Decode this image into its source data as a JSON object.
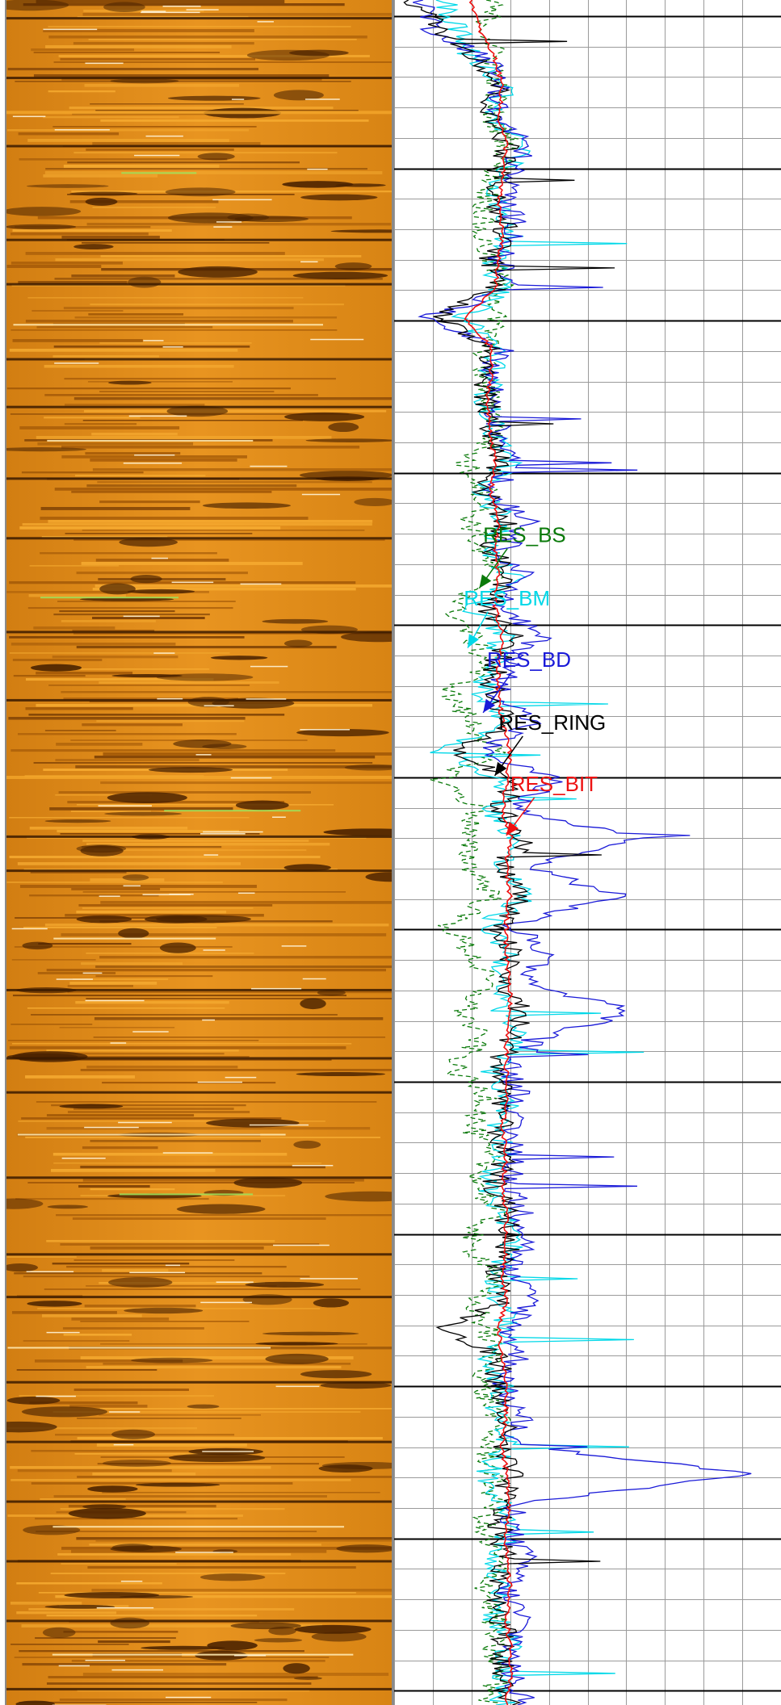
{
  "chart_data": [
    {
      "type": "heatmap",
      "title": "",
      "palette": {
        "dark": "#3a1a00",
        "mid": "#c4720e",
        "light": "#f4a62a",
        "highlight": "#ffe9b0",
        "streak": "#9ee05a"
      },
      "bands": [
        {
          "y": 0.01,
          "tone": "dark"
        },
        {
          "y": 0.045,
          "tone": "dark"
        },
        {
          "y": 0.065,
          "tone": "light"
        },
        {
          "y": 0.085,
          "tone": "dark"
        },
        {
          "y": 0.101,
          "tone": "streak"
        },
        {
          "y": 0.14,
          "tone": "dark"
        },
        {
          "y": 0.166,
          "tone": "dark"
        },
        {
          "y": 0.19,
          "tone": "highlight"
        },
        {
          "y": 0.21,
          "tone": "dark"
        },
        {
          "y": 0.238,
          "tone": "dark"
        },
        {
          "y": 0.258,
          "tone": "highlight"
        },
        {
          "y": 0.28,
          "tone": "dark"
        },
        {
          "y": 0.315,
          "tone": "dark"
        },
        {
          "y": 0.35,
          "tone": "streak"
        },
        {
          "y": 0.37,
          "tone": "dark"
        },
        {
          "y": 0.41,
          "tone": "dark"
        },
        {
          "y": 0.455,
          "tone": "light"
        },
        {
          "y": 0.475,
          "tone": "streak"
        },
        {
          "y": 0.49,
          "tone": "dark"
        },
        {
          "y": 0.51,
          "tone": "dark"
        },
        {
          "y": 0.55,
          "tone": "highlight"
        },
        {
          "y": 0.58,
          "tone": "dark"
        },
        {
          "y": 0.62,
          "tone": "dark"
        },
        {
          "y": 0.64,
          "tone": "dark"
        },
        {
          "y": 0.665,
          "tone": "highlight"
        },
        {
          "y": 0.69,
          "tone": "dark"
        },
        {
          "y": 0.7,
          "tone": "streak"
        },
        {
          "y": 0.735,
          "tone": "dark"
        },
        {
          "y": 0.76,
          "tone": "dark"
        },
        {
          "y": 0.79,
          "tone": "highlight"
        },
        {
          "y": 0.81,
          "tone": "dark"
        },
        {
          "y": 0.845,
          "tone": "dark"
        },
        {
          "y": 0.88,
          "tone": "dark"
        },
        {
          "y": 0.895,
          "tone": "highlight"
        },
        {
          "y": 0.915,
          "tone": "dark"
        },
        {
          "y": 0.95,
          "tone": "dark"
        },
        {
          "y": 0.97,
          "tone": "highlight"
        },
        {
          "y": 0.99,
          "tone": "dark"
        }
      ]
    },
    {
      "type": "line",
      "title": "",
      "xlabel": "",
      "ylabel": "",
      "xlim": [
        0,
        1
      ],
      "ylim": [
        0,
        1
      ],
      "grid": true,
      "grid_columns": 10,
      "grid_rows": 56,
      "major_every_rows": 5,
      "series": [
        {
          "name": "RES_BS",
          "color": "#0a7a0a",
          "style": "dashed",
          "samples": [
            0.25,
            0.24,
            0.26,
            0.27,
            0.25,
            0.3,
            0.26,
            0.24,
            0.22,
            0.25,
            0.28,
            0.26,
            0.24,
            0.23,
            0.25,
            0.27,
            0.18,
            0.24,
            0.2,
            0.22,
            0.26,
            0.15,
            0.2,
            0.24,
            0.14,
            0.2,
            0.26,
            0.12,
            0.22,
            0.18,
            0.2,
            0.26,
            0.14,
            0.2,
            0.24,
            0.18,
            0.22,
            0.15,
            0.25,
            0.2,
            0.24,
            0.22,
            0.26,
            0.18,
            0.27,
            0.2,
            0.24,
            0.26,
            0.22,
            0.27,
            0.24,
            0.25,
            0.26,
            0.22,
            0.27,
            0.24,
            0.26,
            0.25,
            0.27,
            0.24
          ]
        },
        {
          "name": "RES_BM",
          "color": "#00d8e8",
          "style": "solid",
          "samples": [
            0.13,
            0.16,
            0.2,
            0.3,
            0.24,
            0.34,
            0.28,
            0.26,
            0.31,
            0.25,
            0.28,
            0.18,
            0.27,
            0.25,
            0.24,
            0.26,
            0.3,
            0.22,
            0.29,
            0.24,
            0.31,
            0.2,
            0.28,
            0.26,
            0.22,
            0.3,
            0.12,
            0.28,
            0.25,
            0.32,
            0.27,
            0.34,
            0.24,
            0.3,
            0.26,
            0.28,
            0.33,
            0.25,
            0.3,
            0.27,
            0.29,
            0.24,
            0.28,
            0.31,
            0.26,
            0.27,
            0.3,
            0.25,
            0.28,
            0.26,
            0.29,
            0.24,
            0.27,
            0.3,
            0.25,
            0.28,
            0.26,
            0.3,
            0.27,
            0.28
          ]
        },
        {
          "name": "RES_BD",
          "color": "#1a1ad8",
          "style": "solid",
          "samples": [
            0.08,
            0.1,
            0.24,
            0.28,
            0.26,
            0.34,
            0.3,
            0.29,
            0.32,
            0.27,
            0.3,
            0.08,
            0.28,
            0.25,
            0.26,
            0.27,
            0.33,
            0.24,
            0.36,
            0.28,
            0.34,
            0.26,
            0.38,
            0.3,
            0.27,
            0.36,
            0.22,
            0.42,
            0.3,
            0.62,
            0.35,
            0.58,
            0.3,
            0.4,
            0.34,
            0.62,
            0.36,
            0.3,
            0.33,
            0.29,
            0.32,
            0.3,
            0.33,
            0.35,
            0.29,
            0.36,
            0.3,
            0.32,
            0.28,
            0.33,
            0.3,
            0.93,
            0.32,
            0.3,
            0.34,
            0.29,
            0.33,
            0.31,
            0.3,
            0.34
          ]
        },
        {
          "name": "RES_RING",
          "color": "#000000",
          "style": "solid",
          "samples": [
            0.05,
            0.12,
            0.22,
            0.27,
            0.24,
            0.3,
            0.27,
            0.26,
            0.29,
            0.25,
            0.27,
            0.1,
            0.26,
            0.24,
            0.24,
            0.25,
            0.28,
            0.23,
            0.29,
            0.25,
            0.3,
            0.24,
            0.31,
            0.26,
            0.25,
            0.3,
            0.16,
            0.32,
            0.27,
            0.34,
            0.28,
            0.33,
            0.27,
            0.3,
            0.28,
            0.33,
            0.3,
            0.27,
            0.29,
            0.27,
            0.28,
            0.26,
            0.29,
            0.3,
            0.27,
            0.29,
            0.12,
            0.28,
            0.26,
            0.29,
            0.27,
            0.3,
            0.28,
            0.27,
            0.29,
            0.27,
            0.28,
            0.29,
            0.27,
            0.3
          ]
        },
        {
          "name": "RES_BIT",
          "color": "#ee1111",
          "style": "solid",
          "samples": [
            0.2,
            0.22,
            0.26,
            0.28,
            0.27,
            0.29,
            0.28,
            0.27,
            0.28,
            0.27,
            0.26,
            0.18,
            0.25,
            0.25,
            0.24,
            0.25,
            0.26,
            0.25,
            0.27,
            0.26,
            0.27,
            0.26,
            0.28,
            0.27,
            0.27,
            0.28,
            0.3,
            0.29,
            0.28,
            0.3,
            0.29,
            0.3,
            0.29,
            0.29,
            0.3,
            0.3,
            0.29,
            0.29,
            0.29,
            0.28,
            0.29,
            0.28,
            0.29,
            0.29,
            0.28,
            0.29,
            0.27,
            0.28,
            0.29,
            0.29,
            0.28,
            0.29,
            0.3,
            0.29,
            0.29,
            0.3,
            0.29,
            0.3,
            0.3,
            0.29
          ]
        }
      ],
      "annotations": [
        {
          "text": "RES_BS",
          "color": "#0a7a0a",
          "label_x": 0.23,
          "label_y": 0.318,
          "point_x": 0.22,
          "point_y": 0.345
        },
        {
          "text": "RES_BM",
          "color": "#00d8e8",
          "label_x": 0.18,
          "label_y": 0.355,
          "point_x": 0.19,
          "point_y": 0.38
        },
        {
          "text": "RES_BD",
          "color": "#1a1ad8",
          "label_x": 0.24,
          "label_y": 0.391,
          "point_x": 0.23,
          "point_y": 0.418
        },
        {
          "text": "RES_RING",
          "color": "#000000",
          "label_x": 0.27,
          "label_y": 0.428,
          "point_x": 0.26,
          "point_y": 0.455
        },
        {
          "text": "RES_BIT",
          "color": "#ee1111",
          "label_x": 0.3,
          "label_y": 0.464,
          "point_x": 0.29,
          "point_y": 0.49
        }
      ]
    }
  ]
}
